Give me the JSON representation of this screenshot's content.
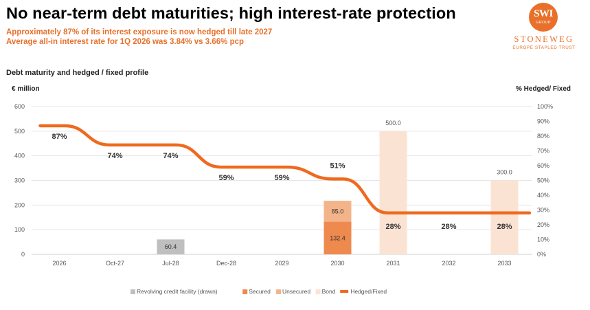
{
  "slide": {
    "title": "No near-term debt maturities; high interest-rate protection",
    "subtitle1": "Approximately 87% of its interest exposure is now hedged till late 2027",
    "subtitle2": "Average all-in interest rate for 1Q 2026 was 3.84% vs 3.66% pcp"
  },
  "logo": {
    "mark": "SWI",
    "group": "GROUP",
    "name": "STONEWEG",
    "sub": "EUROPE STAPLED TRUST"
  },
  "colors": {
    "accent": "#E8702A",
    "revolving": "#BFBFBF",
    "secured": "#EF8A4F",
    "unsecured": "#F4B48A",
    "bond": "#FBE3D3",
    "hedged_line": "#EE6A1F"
  },
  "chart_data": {
    "type": "bar",
    "title": "Debt maturity and hedged / fixed profile",
    "ylabel": "€ million",
    "y2label": "% Hedged/ Fixed",
    "ylim": [
      0,
      600
    ],
    "yticks": [
      "0",
      "100",
      "200",
      "300",
      "400",
      "500",
      "600"
    ],
    "y2lim": [
      0,
      100
    ],
    "y2ticks": [
      "0%",
      "10%",
      "20%",
      "30%",
      "40%",
      "50%",
      "60%",
      "70%",
      "80%",
      "90%",
      "100%"
    ],
    "grid": true,
    "legend_position": "bottom",
    "categories": [
      "2026",
      "Oct-27",
      "Jul-28",
      "Dec-28",
      "2029",
      "2030",
      "2031",
      "2032",
      "2033"
    ],
    "series": [
      {
        "name": "Revolving credit facility (drawn)",
        "color_key": "revolving",
        "values": [
          0,
          0,
          60.4,
          0,
          0,
          0,
          0,
          0,
          0
        ],
        "labels": [
          "",
          "",
          "60.4",
          "",
          "",
          "",
          "",
          "",
          ""
        ]
      },
      {
        "name": "Secured",
        "color_key": "secured",
        "values": [
          0,
          0,
          0,
          0,
          0,
          132.4,
          0,
          0,
          0
        ],
        "labels": [
          "",
          "",
          "",
          "",
          "",
          "132.4",
          "",
          "",
          ""
        ]
      },
      {
        "name": "Unsecured",
        "color_key": "unsecured",
        "values": [
          0,
          0,
          0,
          0,
          0,
          85.0,
          0,
          0,
          0
        ],
        "labels": [
          "",
          "",
          "",
          "",
          "",
          "85.0",
          "",
          "",
          ""
        ]
      },
      {
        "name": "Bond",
        "color_key": "bond",
        "values": [
          0,
          0,
          0,
          0,
          0,
          0,
          500.0,
          0,
          300.0
        ],
        "labels": [
          "",
          "",
          "",
          "",
          "",
          "",
          "500.0",
          "",
          "300.0"
        ]
      }
    ],
    "line": {
      "name": "Hedged/Fixed",
      "color_key": "hedged_line",
      "values": [
        87,
        74,
        74,
        59,
        59,
        51,
        28,
        28,
        28
      ],
      "labels": [
        "87%",
        "74%",
        "74%",
        "59%",
        "59%",
        "51%",
        "28%",
        "28%",
        "28%"
      ]
    }
  }
}
